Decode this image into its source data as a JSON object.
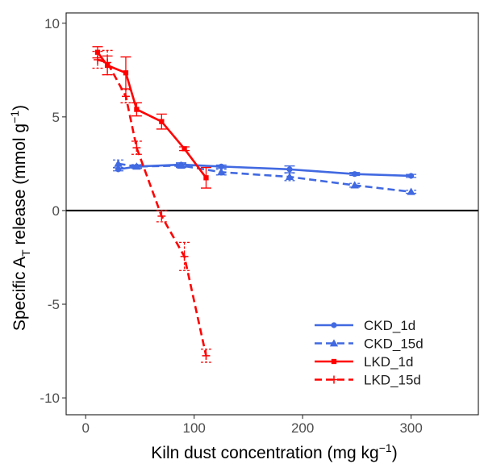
{
  "chart_data": {
    "type": "line",
    "title": "",
    "xlabel": {
      "text": "Kiln dust concentration (mg kg",
      "sup": "−1",
      "close": ")"
    },
    "ylabel": {
      "pre": "Specific A",
      "sub": "T",
      "mid": " release (mmol g",
      "sup": "−1",
      "close": ")"
    },
    "xlim": [
      -18,
      362
    ],
    "ylim": [
      -10.9,
      10.55
    ],
    "xticks": [
      0,
      100,
      200,
      300
    ],
    "xtick_labels": [
      "0",
      "100",
      "200",
      "300"
    ],
    "yticks": [
      -10,
      -5,
      0,
      5,
      10
    ],
    "ytick_labels": [
      "-10",
      "-5",
      "0",
      "5",
      "10"
    ],
    "zero_line": 0,
    "grid": false,
    "legend_position": "bottom-right",
    "series": [
      {
        "name": "CKD_1d",
        "color": "#4169e1",
        "dashed": false,
        "marker": "circle",
        "x": [
          30,
          47,
          88,
          125,
          188,
          248,
          300
        ],
        "y": [
          2.2,
          2.35,
          2.45,
          2.35,
          2.2,
          1.95,
          1.85
        ],
        "err": [
          0.08,
          0.08,
          0.1,
          0.08,
          0.18,
          0.08,
          0.08
        ]
      },
      {
        "name": "CKD_15d",
        "color": "#4169e1",
        "dashed": true,
        "marker": "triangle",
        "x": [
          30,
          47,
          88,
          125,
          188,
          248,
          300
        ],
        "y": [
          2.5,
          2.35,
          2.4,
          2.05,
          1.8,
          1.35,
          1.0
        ],
        "err": [
          0.2,
          0.1,
          0.1,
          0.15,
          0.2,
          0.1,
          0.08
        ]
      },
      {
        "name": "LKD_1d",
        "color": "#ff0000",
        "dashed": false,
        "marker": "square",
        "x": [
          11,
          20,
          37,
          47,
          70,
          91,
          111
        ],
        "y": [
          8.45,
          7.75,
          7.35,
          5.4,
          4.75,
          3.3,
          1.75
        ],
        "err": [
          0.3,
          0.5,
          0.85,
          0.35,
          0.4,
          0.1,
          0.55
        ]
      },
      {
        "name": "LKD_15d",
        "color": "#ff0000",
        "dashed": true,
        "marker": "plus",
        "x": [
          11,
          20,
          37,
          47,
          70,
          91,
          111
        ],
        "y": [
          8.05,
          7.9,
          6.1,
          3.35,
          -0.3,
          -2.45,
          -7.75
        ],
        "err": [
          0.45,
          0.65,
          0.35,
          0.35,
          0.3,
          0.75,
          0.35
        ]
      }
    ]
  }
}
